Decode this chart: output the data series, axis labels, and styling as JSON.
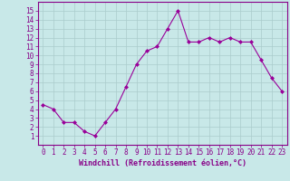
{
  "x": [
    0,
    1,
    2,
    3,
    4,
    5,
    6,
    7,
    8,
    9,
    10,
    11,
    12,
    13,
    14,
    15,
    16,
    17,
    18,
    19,
    20,
    21,
    22,
    23
  ],
  "y": [
    4.5,
    4.0,
    2.5,
    2.5,
    1.5,
    1.0,
    2.5,
    4.0,
    6.5,
    9.0,
    10.5,
    11.0,
    13.0,
    15.0,
    11.5,
    11.5,
    12.0,
    11.5,
    12.0,
    11.5,
    11.5,
    9.5,
    7.5,
    6.0
  ],
  "line_color": "#990099",
  "marker": "D",
  "marker_size": 2.0,
  "bg_color": "#c8e8e8",
  "grid_color": "#aacccc",
  "xlabel": "Windchill (Refroidissement éolien,°C)",
  "xlabel_color": "#880088",
  "xlim": [
    -0.5,
    23.5
  ],
  "ylim": [
    0,
    16
  ],
  "xticks": [
    0,
    1,
    2,
    3,
    4,
    5,
    6,
    7,
    8,
    9,
    10,
    11,
    12,
    13,
    14,
    15,
    16,
    17,
    18,
    19,
    20,
    21,
    22,
    23
  ],
  "yticks": [
    1,
    2,
    3,
    4,
    5,
    6,
    7,
    8,
    9,
    10,
    11,
    12,
    13,
    14,
    15
  ],
  "tick_color": "#880088",
  "axis_color": "#880088",
  "font_size": 5.5,
  "xlabel_fontsize": 6.0
}
